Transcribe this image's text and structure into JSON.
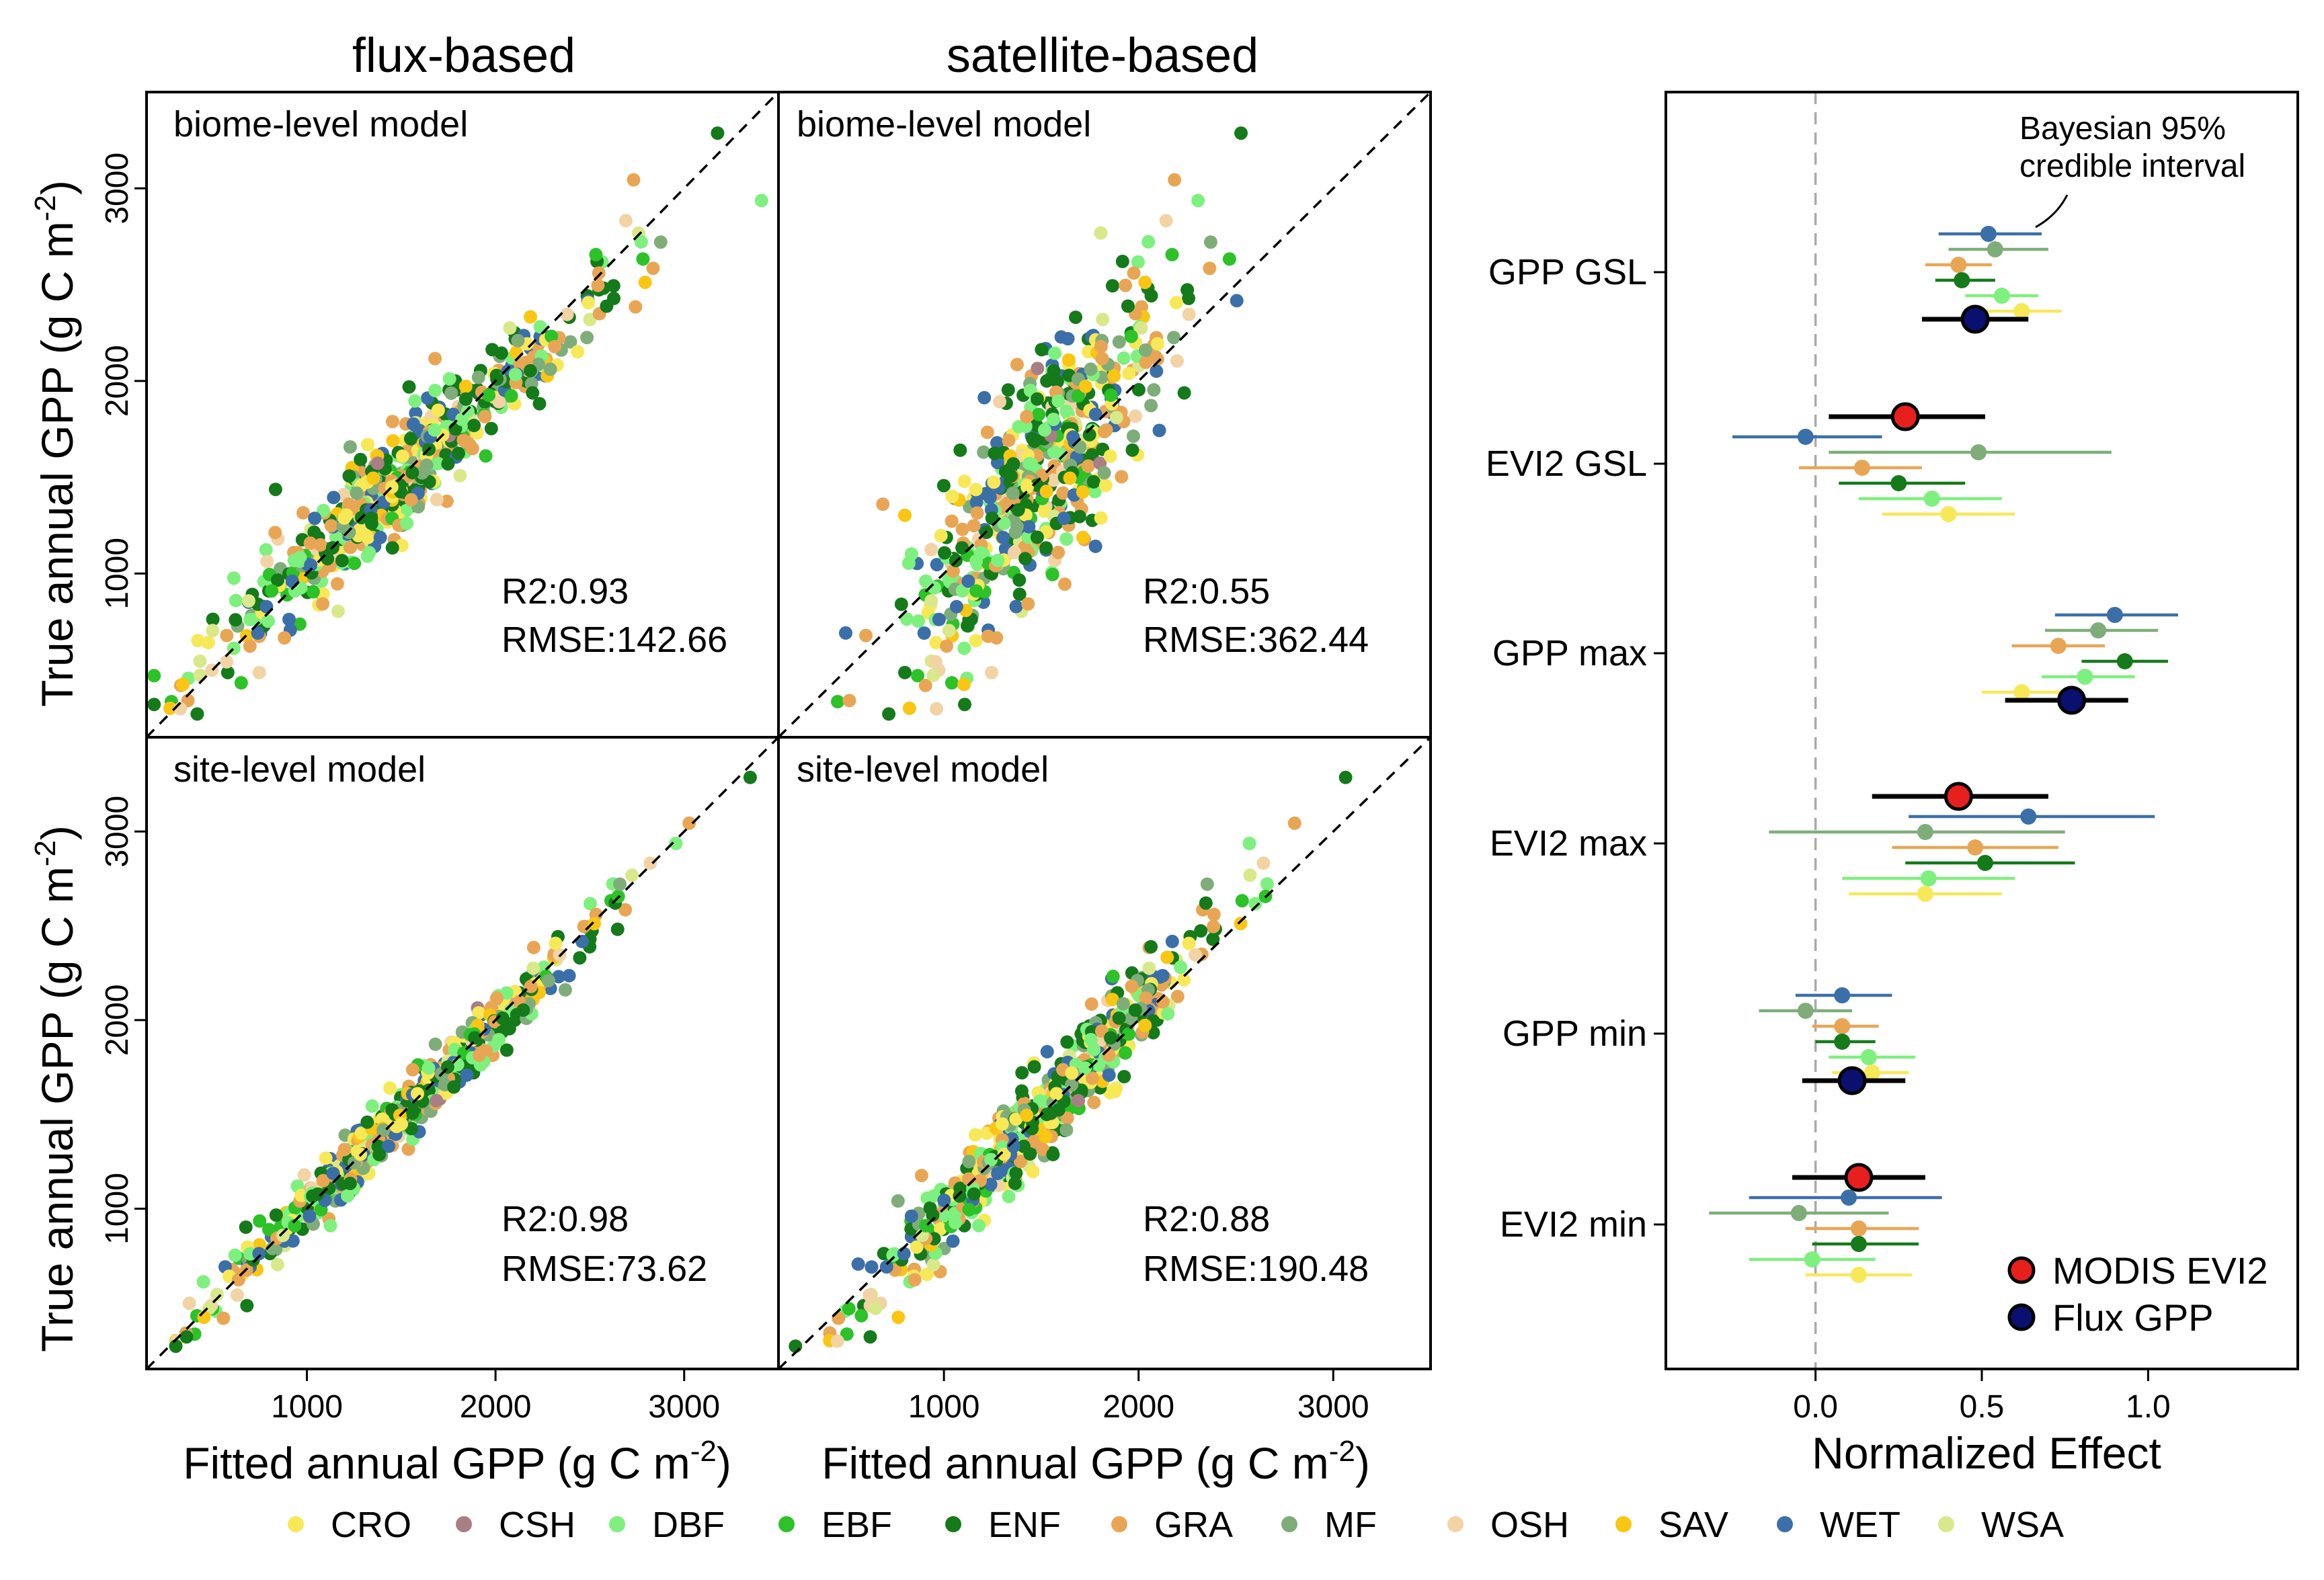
{
  "column_titles": {
    "flux": "flux-based",
    "satellite": "satellite-based"
  },
  "scatter_axes": {
    "xlabel": "Fitted annual GPP",
    "ylabel": "True annual GPP",
    "unit_prefix": "g C m",
    "unit_exp": "-2",
    "xticks": [
      1000,
      2000,
      3000
    ],
    "xtick_labels": [
      "1000",
      "2000",
      "3000"
    ],
    "yticks": [
      1000,
      2000,
      3000
    ],
    "ytick_labels": [
      "1000",
      "2000",
      "3000"
    ],
    "xlim": [
      150,
      3500
    ],
    "ylim": [
      150,
      3500
    ]
  },
  "forest": {
    "xlabel": "Normalized Effect",
    "annotation_line1": "Bayesian 95%",
    "annotation_line2": "credible interval",
    "xticks": [
      0.0,
      0.5,
      1.0
    ],
    "xtick_labels": [
      "0.0",
      "0.5",
      "1.0"
    ],
    "legend": [
      {
        "label": "MODIS EVI2",
        "color": "#e8201d"
      },
      {
        "label": "Flux GPP",
        "color": "#0a1070"
      }
    ]
  },
  "biome_legend": [
    {
      "code": "CRO",
      "color": "#f7e858"
    },
    {
      "code": "CSH",
      "color": "#a87f84"
    },
    {
      "code": "DBF",
      "color": "#7ef07e"
    },
    {
      "code": "EBF",
      "color": "#2cc228"
    },
    {
      "code": "ENF",
      "color": "#157a1a"
    },
    {
      "code": "GRA",
      "color": "#e8a655"
    },
    {
      "code": "MF",
      "color": "#7fad7a"
    },
    {
      "code": "OSH",
      "color": "#f2d3a4"
    },
    {
      "code": "SAV",
      "color": "#f9c613"
    },
    {
      "code": "WET",
      "color": "#3b6fa8"
    },
    {
      "code": "WSA",
      "color": "#d9e88a"
    }
  ],
  "chart_data": [
    {
      "type": "scatter",
      "id": "flux_biome",
      "label": "biome-level model",
      "r2_text": "R2:0.93",
      "rmse_text": "RMSE:142.66",
      "r2": 0.93,
      "rmse": 142.66,
      "xlim": [
        150,
        3500
      ],
      "ylim": [
        150,
        3500
      ]
    },
    {
      "type": "scatter",
      "id": "sat_biome",
      "label": "biome-level model",
      "r2_text": "R2:0.55",
      "rmse_text": "RMSE:362.44",
      "r2": 0.55,
      "rmse": 362.44,
      "xlim": [
        150,
        3500
      ],
      "ylim": [
        150,
        3500
      ]
    },
    {
      "type": "scatter",
      "id": "flux_site",
      "label": "site-level model",
      "r2_text": "R2:0.98",
      "rmse_text": "RMSE:73.62",
      "r2": 0.98,
      "rmse": 73.62,
      "xlim": [
        150,
        3500
      ],
      "ylim": [
        150,
        3500
      ]
    },
    {
      "type": "scatter",
      "id": "sat_site",
      "label": "site-level model",
      "r2_text": "R2:0.88",
      "rmse_text": "RMSE:190.48",
      "r2": 0.88,
      "rmse": 190.48,
      "xlim": [
        150,
        3500
      ],
      "ylim": [
        150,
        3500
      ]
    },
    {
      "type": "forest",
      "id": "effects",
      "xlabel": "Normalized Effect",
      "xlim": [
        -0.45,
        1.45
      ],
      "groups": [
        {
          "label": "GPP GSL",
          "main": {
            "series": "Flux GPP",
            "value": 0.48,
            "lo": 0.32,
            "hi": 0.64
          },
          "biomes": [
            {
              "biome": "WET",
              "value": 0.52,
              "lo": 0.37,
              "hi": 0.68
            },
            {
              "biome": "MF",
              "value": 0.54,
              "lo": 0.4,
              "hi": 0.7
            },
            {
              "biome": "GRA",
              "value": 0.43,
              "lo": 0.33,
              "hi": 0.53
            },
            {
              "biome": "ENF",
              "value": 0.44,
              "lo": 0.36,
              "hi": 0.54
            },
            {
              "biome": "DBF",
              "value": 0.56,
              "lo": 0.45,
              "hi": 0.67
            },
            {
              "biome": "CRO",
              "value": 0.62,
              "lo": 0.49,
              "hi": 0.74
            }
          ]
        },
        {
          "label": "EVI2 GSL",
          "main": {
            "series": "MODIS EVI2",
            "value": 0.27,
            "lo": 0.04,
            "hi": 0.51
          },
          "biomes": [
            {
              "biome": "WET",
              "value": -0.03,
              "lo": -0.25,
              "hi": 0.2
            },
            {
              "biome": "MF",
              "value": 0.49,
              "lo": 0.04,
              "hi": 0.89
            },
            {
              "biome": "GRA",
              "value": 0.14,
              "lo": -0.05,
              "hi": 0.32
            },
            {
              "biome": "ENF",
              "value": 0.25,
              "lo": 0.07,
              "hi": 0.45
            },
            {
              "biome": "DBF",
              "value": 0.35,
              "lo": 0.13,
              "hi": 0.56
            },
            {
              "biome": "CRO",
              "value": 0.4,
              "lo": 0.2,
              "hi": 0.6
            }
          ]
        },
        {
          "label": "GPP max",
          "main": {
            "series": "Flux GPP",
            "value": 0.77,
            "lo": 0.57,
            "hi": 0.94
          },
          "biomes": [
            {
              "biome": "WET",
              "value": 0.9,
              "lo": 0.72,
              "hi": 1.09
            },
            {
              "biome": "MF",
              "value": 0.85,
              "lo": 0.69,
              "hi": 1.03
            },
            {
              "biome": "GRA",
              "value": 0.73,
              "lo": 0.59,
              "hi": 0.87
            },
            {
              "biome": "ENF",
              "value": 0.93,
              "lo": 0.8,
              "hi": 1.06
            },
            {
              "biome": "DBF",
              "value": 0.81,
              "lo": 0.68,
              "hi": 0.96
            },
            {
              "biome": "CRO",
              "value": 0.62,
              "lo": 0.5,
              "hi": 0.74
            }
          ]
        },
        {
          "label": "EVI2 max",
          "main": {
            "series": "MODIS EVI2",
            "value": 0.43,
            "lo": 0.17,
            "hi": 0.7
          },
          "biomes": [
            {
              "biome": "WET",
              "value": 0.64,
              "lo": 0.28,
              "hi": 1.02
            },
            {
              "biome": "MF",
              "value": 0.33,
              "lo": -0.14,
              "hi": 0.75
            },
            {
              "biome": "GRA",
              "value": 0.48,
              "lo": 0.23,
              "hi": 0.73
            },
            {
              "biome": "ENF",
              "value": 0.51,
              "lo": 0.27,
              "hi": 0.78
            },
            {
              "biome": "DBF",
              "value": 0.34,
              "lo": 0.08,
              "hi": 0.6
            },
            {
              "biome": "CRO",
              "value": 0.33,
              "lo": 0.1,
              "hi": 0.56
            }
          ]
        },
        {
          "label": "GPP min",
          "main": {
            "series": "Flux GPP",
            "value": 0.11,
            "lo": -0.04,
            "hi": 0.27
          },
          "biomes": [
            {
              "biome": "WET",
              "value": 0.08,
              "lo": -0.06,
              "hi": 0.23
            },
            {
              "biome": "MF",
              "value": -0.03,
              "lo": -0.17,
              "hi": 0.11
            },
            {
              "biome": "GRA",
              "value": 0.08,
              "lo": -0.01,
              "hi": 0.19
            },
            {
              "biome": "ENF",
              "value": 0.08,
              "lo": 0.0,
              "hi": 0.18
            },
            {
              "biome": "DBF",
              "value": 0.16,
              "lo": 0.04,
              "hi": 0.3
            },
            {
              "biome": "CRO",
              "value": 0.17,
              "lo": 0.05,
              "hi": 0.28
            }
          ]
        },
        {
          "label": "EVI2 min",
          "main": {
            "series": "MODIS EVI2",
            "value": 0.13,
            "lo": -0.07,
            "hi": 0.33
          },
          "biomes": [
            {
              "biome": "WET",
              "value": 0.1,
              "lo": -0.2,
              "hi": 0.38
            },
            {
              "biome": "MF",
              "value": -0.05,
              "lo": -0.32,
              "hi": 0.22
            },
            {
              "biome": "GRA",
              "value": 0.13,
              "lo": -0.03,
              "hi": 0.31
            },
            {
              "biome": "ENF",
              "value": 0.13,
              "lo": -0.01,
              "hi": 0.31
            },
            {
              "biome": "DBF",
              "value": -0.01,
              "lo": -0.2,
              "hi": 0.18
            },
            {
              "biome": "CRO",
              "value": 0.13,
              "lo": -0.03,
              "hi": 0.29
            }
          ]
        }
      ]
    }
  ]
}
